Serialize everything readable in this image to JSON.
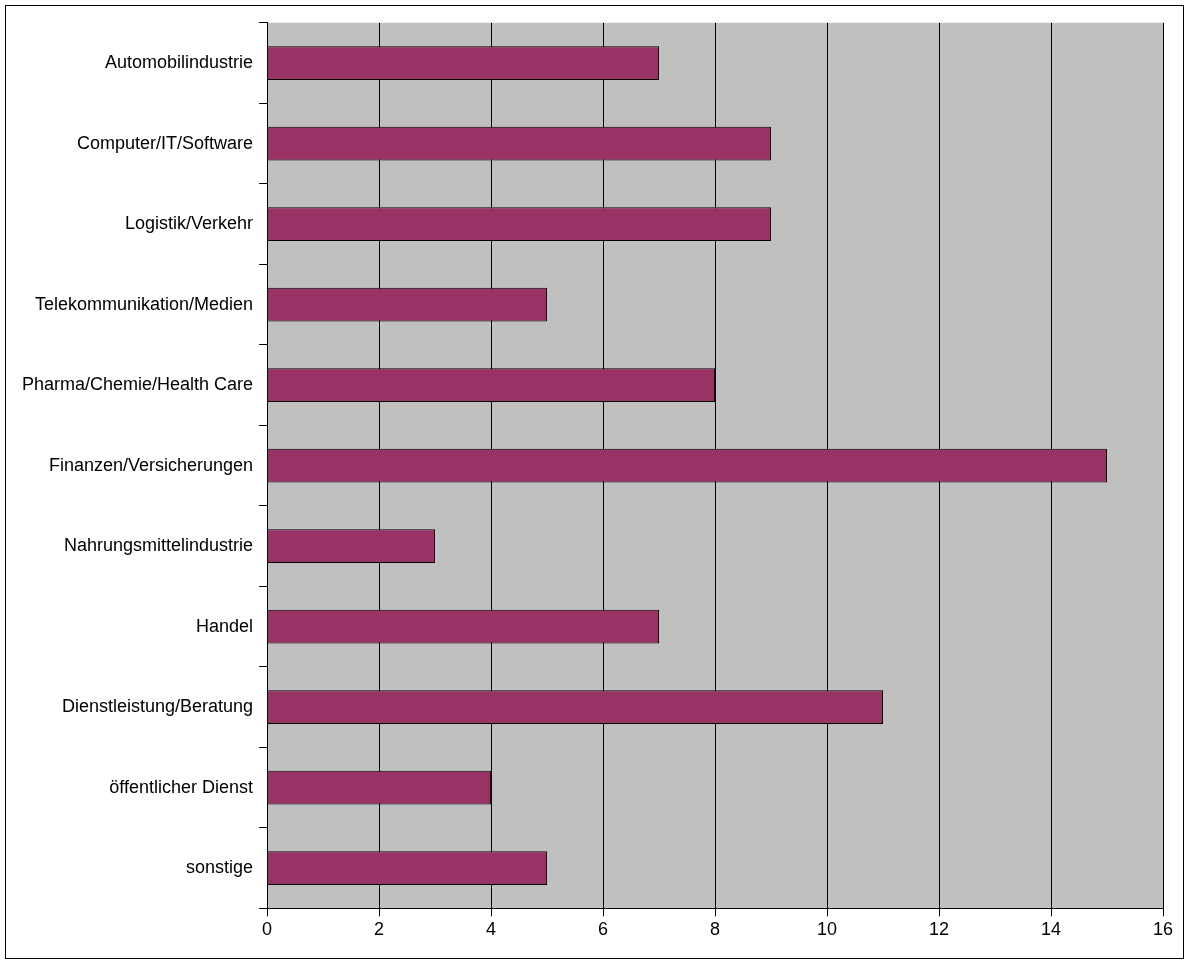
{
  "chart_data": {
    "type": "bar",
    "orientation": "horizontal",
    "categories": [
      "Automobilindustrie",
      "Computer/IT/Software",
      "Logistik/Verkehr",
      "Telekommunikation/Medien",
      "Pharma/Chemie/Health Care",
      "Finanzen/Versicherungen",
      "Nahrungsmittelindustrie",
      "Handel",
      "Dienstleistung/Beratung",
      "öffentlicher Dienst",
      "sonstige"
    ],
    "values": [
      7,
      9,
      9,
      5,
      8,
      15,
      3,
      7,
      11,
      4,
      5
    ],
    "color": "#993366",
    "xlim": [
      0,
      16
    ],
    "xticks": [
      0,
      2,
      4,
      6,
      8,
      10,
      12,
      14,
      16
    ],
    "grid": "x",
    "legend": false
  }
}
